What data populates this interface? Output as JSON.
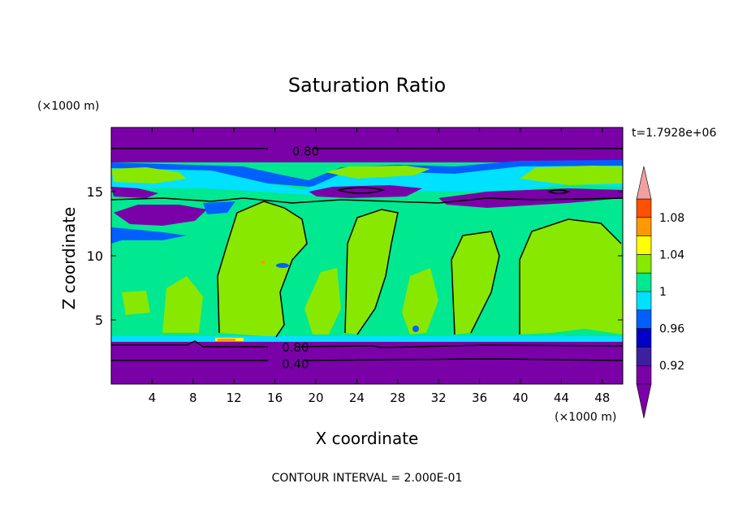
{
  "chart_data": {
    "type": "heatmap",
    "title": "Saturation Ratio",
    "xlabel": "X coordinate",
    "ylabel": "Z coordinate",
    "x_unit": "(×1000 m)",
    "y_unit": "(×1000 m)",
    "time_label": "t=1.7928e+06",
    "footer": "CONTOUR INTERVAL = 2.000E-01",
    "xlim": [
      0,
      50
    ],
    "ylim": [
      0,
      20
    ],
    "x_ticks": [
      4,
      8,
      12,
      16,
      20,
      24,
      28,
      32,
      36,
      40,
      44,
      48
    ],
    "x_tick_labels": [
      "4",
      "8",
      "12",
      "16",
      "20",
      "24",
      "28",
      "32",
      "36",
      "40",
      "44",
      "48"
    ],
    "y_ticks": [
      5,
      10,
      15
    ],
    "y_tick_labels": [
      "5",
      "10",
      "15"
    ],
    "contour_labels": [
      {
        "text": "0.80",
        "x": 19,
        "y": 18.2
      },
      {
        "text": "0.80",
        "x": 18,
        "y": 2.9
      },
      {
        "text": "0.40",
        "x": 18,
        "y": 1.6
      }
    ],
    "colorbar": {
      "levels": [
        0.92,
        0.94,
        0.96,
        0.98,
        1.0,
        1.02,
        1.04,
        1.06,
        1.08
      ],
      "tick_labels": [
        "0.92",
        "0.96",
        "1",
        "1.04",
        "1.08"
      ],
      "tick_values": [
        0.92,
        0.96,
        1.0,
        1.04,
        1.08
      ],
      "colors": [
        "#7a00a8",
        "#3c20a0",
        "#0000c8",
        "#0060ff",
        "#00e0ff",
        "#00e890",
        "#88e800",
        "#ffff00",
        "#ff9900",
        "#ff5000",
        "#ff2020",
        "#f0a0a0"
      ]
    },
    "colors": {
      "dry": "#7a00a8",
      "near_sat": "#00e890",
      "supersat": "#88e800",
      "cyan": "#00e0ff",
      "blue": "#0060ff",
      "dark_blue": "#0000c8"
    }
  }
}
